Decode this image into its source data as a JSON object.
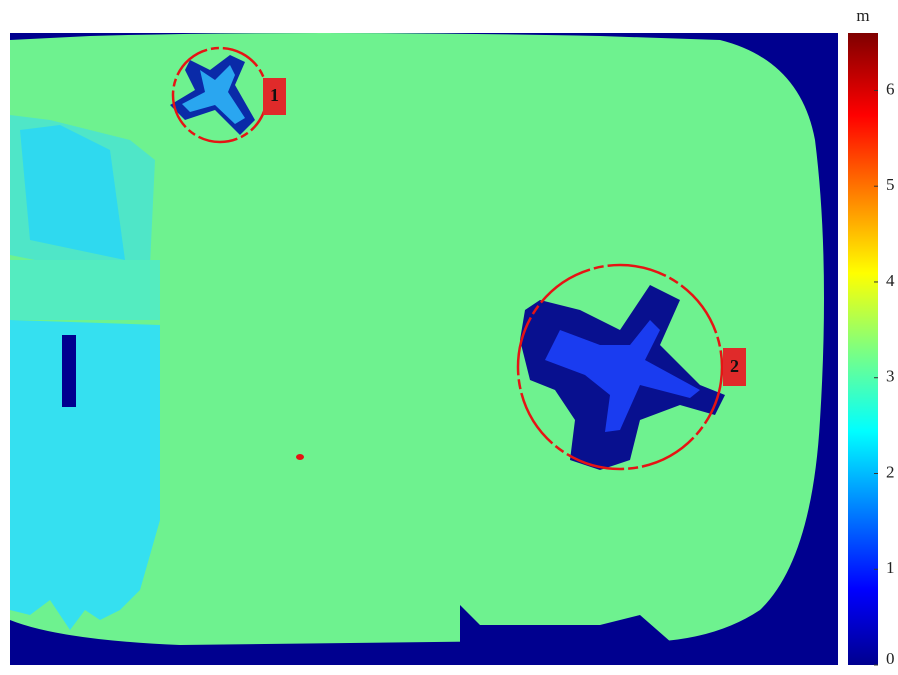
{
  "colorbar": {
    "unit": "m",
    "lim": [
      0,
      6.6
    ],
    "ticks": [
      0,
      1,
      2,
      3,
      4,
      5,
      6
    ]
  },
  "markers": [
    {
      "label": "1"
    },
    {
      "label": "2"
    }
  ]
}
